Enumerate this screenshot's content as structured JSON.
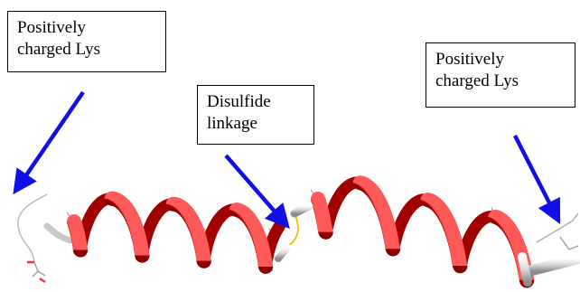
{
  "labels": {
    "lys_left": "Positively\ncharged Lys",
    "disulfide": "Disulfide\nlinkage",
    "lys_right": "Positively\ncharged Lys"
  },
  "colors": {
    "helix": "#e01010",
    "helix_dark": "#9a0000",
    "arrow": "#1010e6",
    "atoms_gray": "#9a9a9a",
    "bond_yellow": "#f2c200",
    "stick_white": "#dcdcdc"
  },
  "icons": {
    "arrow": "arrow-icon",
    "molecule": "alpha-helix-ribbon"
  }
}
